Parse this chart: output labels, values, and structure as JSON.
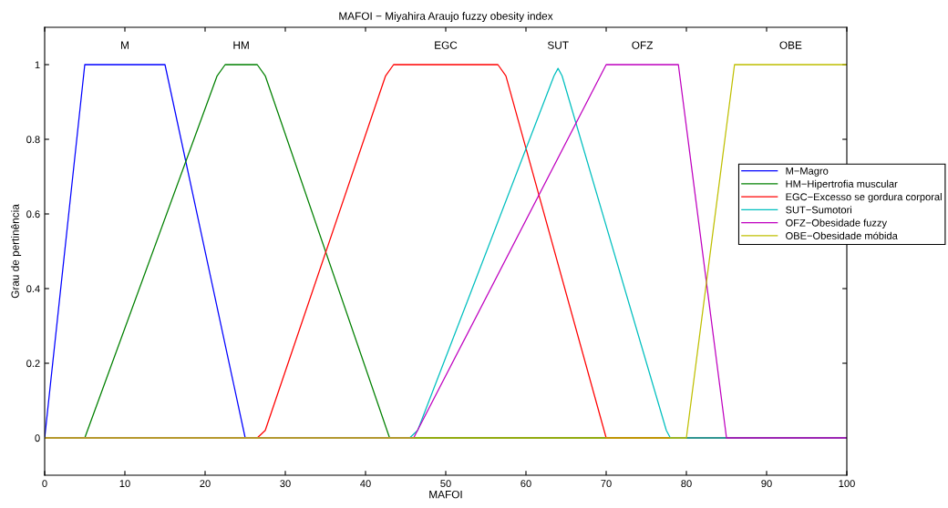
{
  "chart_data": {
    "type": "line",
    "title": "MAFOI − Miyahira Araujo fuzzy obesity index",
    "xlabel": "MAFOI",
    "ylabel": "Grau de pertinência",
    "xlim": [
      0,
      100
    ],
    "xticks": [
      0,
      10,
      20,
      30,
      40,
      50,
      60,
      70,
      80,
      90,
      100
    ],
    "ylim": [
      -0.1,
      1.1
    ],
    "yticks": [
      0,
      0.2,
      0.4,
      0.6,
      0.8,
      1
    ],
    "grid": false,
    "legend": "right",
    "marker": "none",
    "line_style": "solid",
    "series": [
      {
        "name": "M−Magro",
        "color": "#0000ff",
        "x": [
          0,
          5,
          15,
          25,
          100
        ],
        "values": [
          0,
          1,
          1,
          0,
          0
        ]
      },
      {
        "name": "HM−Hipertrofia muscular",
        "color": "#008000",
        "x": [
          0,
          5,
          21.5,
          22.5,
          26.5,
          27.5,
          43,
          44,
          100
        ],
        "values": [
          0,
          0,
          0.97,
          1,
          1,
          0.97,
          0,
          0,
          0
        ]
      },
      {
        "name": "EGC−Excesso se gordura corporal",
        "color": "#ff0000",
        "x": [
          0,
          26.5,
          27.5,
          42.5,
          43.5,
          56.5,
          57.5,
          70,
          100
        ],
        "values": [
          0,
          0,
          0.02,
          0.97,
          1,
          1,
          0.97,
          0,
          0
        ]
      },
      {
        "name": "SUT−Sumotori",
        "color": "#00bfbf",
        "x": [
          0,
          45.5,
          46.5,
          63.5,
          64,
          64.5,
          77.5,
          78,
          100
        ],
        "values": [
          0,
          0,
          0.02,
          0.97,
          0.99,
          0.97,
          0.02,
          0,
          0
        ]
      },
      {
        "name": "OFZ−Obesidade fuzzy",
        "color": "#bf00bf",
        "x": [
          0,
          46,
          70,
          79,
          85,
          100
        ],
        "values": [
          0,
          0,
          1,
          1,
          0,
          0
        ]
      },
      {
        "name": "OBE−Obesidade móbida",
        "color": "#bfbf00",
        "x": [
          0,
          80,
          86,
          100
        ],
        "values": [
          0,
          0,
          1,
          1
        ]
      }
    ],
    "annotations": [
      "M",
      "HM",
      "EGC",
      "SUT",
      "OFZ",
      "OBE"
    ]
  }
}
